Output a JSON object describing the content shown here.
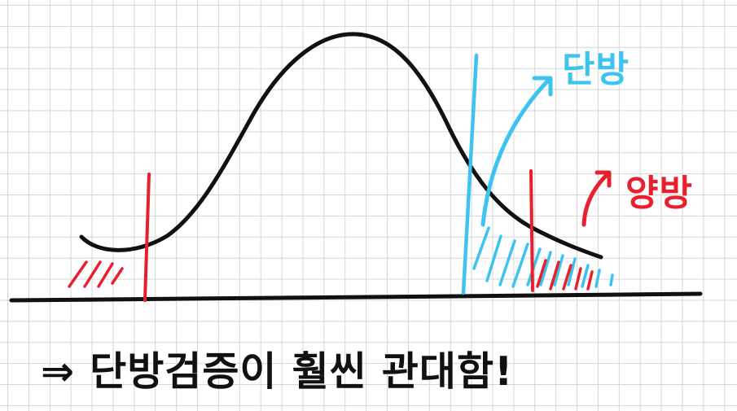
{
  "labels": {
    "one_tailed": "단방",
    "two_tailed": "양방",
    "conclusion": "⇒ 단방검증이 훨씬 관대함!"
  },
  "colors": {
    "curve": "#111111",
    "grid": "#d6d6d6",
    "one_tailed": "#3cc3ef",
    "two_tailed": "#e8202e",
    "text": "#111111"
  },
  "icons": [
    "curved-arrow-icon"
  ]
}
